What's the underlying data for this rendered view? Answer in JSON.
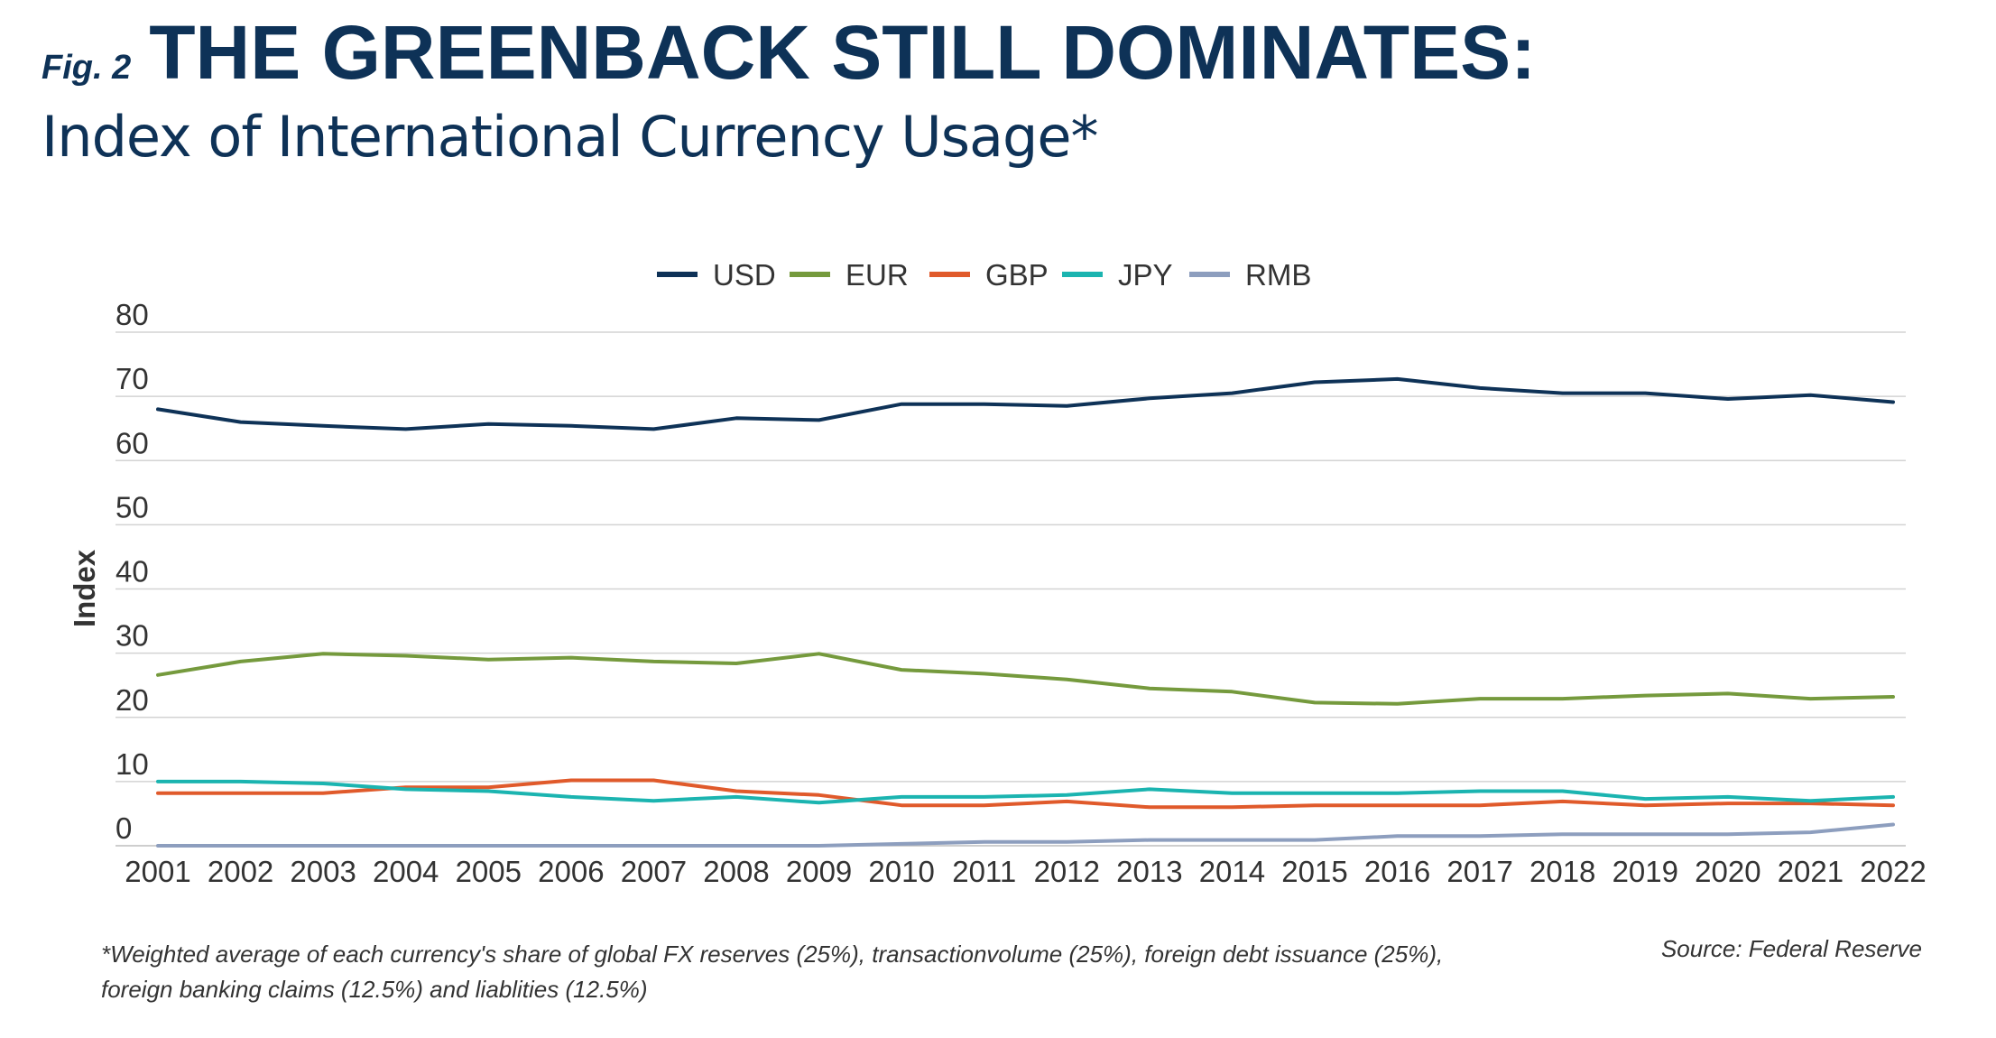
{
  "header": {
    "fig_label": "Fig. 2",
    "title": "THE GREENBACK STILL DOMINATES:",
    "subtitle": "Index of International Currency Usage*"
  },
  "footnote": {
    "line1": "*Weighted average of each currency's share of global FX reserves (25%), transactionvolume (25%), foreign debt issuance (25%),",
    "line2": "foreign banking claims (12.5%) and liablities (12.5%)"
  },
  "source": "Source: Federal Reserve",
  "colors": {
    "title": "#0e3257",
    "grid": "#d3d3d3",
    "axis_text": "#333333"
  },
  "chart_data": {
    "type": "line",
    "title": "",
    "xlabel": "",
    "ylabel": "Index",
    "ylim": [
      0,
      80
    ],
    "yticks": [
      0,
      10,
      20,
      30,
      40,
      50,
      60,
      70,
      80
    ],
    "grid": true,
    "legend_position": "top-center",
    "x": [
      "2001",
      "2002",
      "2003",
      "2004",
      "2005",
      "2006",
      "2007",
      "2008",
      "2009",
      "2010",
      "2011",
      "2012",
      "2013",
      "2014",
      "2015",
      "2016",
      "2017",
      "2018",
      "2019",
      "2020",
      "2021",
      "2022"
    ],
    "series": [
      {
        "name": "USD",
        "color": "#0e3257",
        "values": [
          68,
          66,
          65.4,
          64.9,
          65.7,
          65.4,
          64.9,
          66.6,
          66.3,
          68.8,
          68.8,
          68.5,
          69.7,
          70.5,
          72.2,
          72.7,
          71.3,
          70.5,
          70.5,
          69.6,
          70.2,
          69.1
        ]
      },
      {
        "name": "EUR",
        "color": "#759a3d",
        "values": [
          26.6,
          28.7,
          29.9,
          29.6,
          29,
          29.3,
          28.7,
          28.4,
          29.9,
          27.4,
          26.8,
          25.9,
          24.5,
          24,
          22.3,
          22.1,
          22.9,
          22.9,
          23.4,
          23.7,
          22.9,
          23.2
        ]
      },
      {
        "name": "GBP",
        "color": "#e05a2b",
        "values": [
          8.2,
          8.2,
          8.2,
          9.1,
          9.1,
          10.2,
          10.2,
          8.5,
          7.9,
          6.3,
          6.3,
          6.9,
          6,
          6,
          6.3,
          6.3,
          6.3,
          6.9,
          6.3,
          6.6,
          6.6,
          6.3
        ]
      },
      {
        "name": "JPY",
        "color": "#1bb4b0",
        "values": [
          10,
          10,
          9.7,
          8.8,
          8.5,
          7.6,
          7,
          7.6,
          6.7,
          7.6,
          7.6,
          7.9,
          8.8,
          8.2,
          8.2,
          8.2,
          8.5,
          8.5,
          7.3,
          7.6,
          7,
          7.6
        ]
      },
      {
        "name": "RMB",
        "color": "#8d9ebe",
        "values": [
          0,
          0,
          0,
          0,
          0,
          0,
          0,
          0,
          0,
          0.3,
          0.6,
          0.6,
          0.9,
          0.9,
          0.9,
          1.5,
          1.5,
          1.8,
          1.8,
          1.8,
          2.1,
          3.3
        ]
      }
    ]
  }
}
